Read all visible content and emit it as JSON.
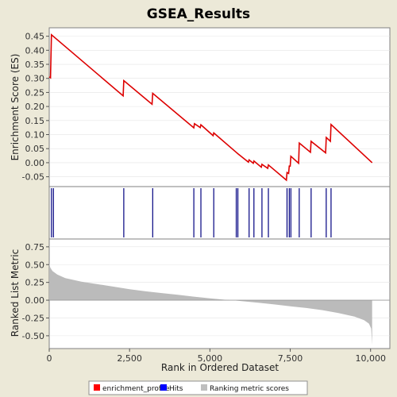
{
  "chart_data": {
    "title": "GSEA_Results",
    "colors": {
      "background": "#ece9d8",
      "panel": "#ffffff",
      "enrichment_line": "#dd0000",
      "hits": "#000080",
      "ranking": "#bbbbbb",
      "legend_enrichment": "#ff0000",
      "legend_hits": "#0000ff",
      "legend_ranking": "#bfbfbf"
    },
    "x_axis": {
      "label": "Rank in Ordered Dataset",
      "range": [
        0,
        10600
      ],
      "ticks": [
        0,
        2500,
        5000,
        7500,
        10000
      ],
      "tick_labels": [
        "0",
        "2,500",
        "5,000",
        "7,500",
        "10,000"
      ]
    },
    "enrichment_panel": {
      "type": "line",
      "ylabel": "Enrichment Score (ES)",
      "ylim": [
        -0.085,
        0.48
      ],
      "yticks": [
        -0.05,
        0.0,
        0.05,
        0.1,
        0.15,
        0.2,
        0.25,
        0.3,
        0.35,
        0.4,
        0.45
      ],
      "ytick_labels": [
        "-0.05",
        "0.00",
        "0.05",
        "0.10",
        "0.15",
        "0.20",
        "0.25",
        "0.30",
        "0.35",
        "0.40",
        "0.45"
      ],
      "points": [
        [
          0,
          0.305
        ],
        [
          40,
          0.302
        ],
        [
          70,
          0.455
        ],
        [
          2300,
          0.238
        ],
        [
          2320,
          0.292
        ],
        [
          3200,
          0.208
        ],
        [
          3220,
          0.247
        ],
        [
          4500,
          0.124
        ],
        [
          4520,
          0.139
        ],
        [
          4700,
          0.125
        ],
        [
          4720,
          0.135
        ],
        [
          5100,
          0.096
        ],
        [
          5120,
          0.106
        ],
        [
          5820,
          0.037
        ],
        [
          5870,
          0.032
        ],
        [
          6200,
          0.002
        ],
        [
          6220,
          0.01
        ],
        [
          6350,
          -0.002
        ],
        [
          6370,
          0.006
        ],
        [
          6600,
          -0.016
        ],
        [
          6620,
          -0.006
        ],
        [
          6800,
          -0.02
        ],
        [
          6820,
          -0.008
        ],
        [
          7380,
          -0.062
        ],
        [
          7400,
          -0.035
        ],
        [
          7450,
          -0.038
        ],
        [
          7470,
          -0.012
        ],
        [
          7500,
          -0.012
        ],
        [
          7520,
          0.023
        ],
        [
          7760,
          -0.002
        ],
        [
          7780,
          0.07
        ],
        [
          8130,
          0.037
        ],
        [
          8150,
          0.076
        ],
        [
          8600,
          0.035
        ],
        [
          8620,
          0.09
        ],
        [
          8750,
          0.076
        ],
        [
          8770,
          0.136
        ],
        [
          10050,
          0.0
        ]
      ]
    },
    "hits_panel": {
      "type": "hits",
      "ranks": [
        70,
        130,
        2320,
        3220,
        4500,
        4720,
        5120,
        5820,
        5870,
        6220,
        6370,
        6620,
        6820,
        7400,
        7470,
        7520,
        7780,
        8150,
        8620,
        8770
      ]
    },
    "ranking_panel": {
      "type": "area",
      "ylabel": "Ranked List Metric",
      "ylim": [
        -0.68,
        0.86
      ],
      "yticks": [
        -0.5,
        -0.25,
        0.0,
        0.25,
        0.5,
        0.75
      ],
      "ytick_labels": [
        "-0.50",
        "-0.25",
        "0.00",
        "0.25",
        "0.50",
        "0.75"
      ],
      "points": [
        [
          0,
          0.52
        ],
        [
          30,
          0.46
        ],
        [
          100,
          0.41
        ],
        [
          250,
          0.36
        ],
        [
          500,
          0.31
        ],
        [
          1000,
          0.26
        ],
        [
          1500,
          0.225
        ],
        [
          2000,
          0.19
        ],
        [
          2500,
          0.155
        ],
        [
          3000,
          0.125
        ],
        [
          3500,
          0.1
        ],
        [
          4000,
          0.075
        ],
        [
          4500,
          0.05
        ],
        [
          5000,
          0.025
        ],
        [
          5500,
          0.005
        ],
        [
          5800,
          -0.005
        ],
        [
          6500,
          -0.035
        ],
        [
          7000,
          -0.06
        ],
        [
          7500,
          -0.085
        ],
        [
          8000,
          -0.11
        ],
        [
          8500,
          -0.14
        ],
        [
          9000,
          -0.18
        ],
        [
          9500,
          -0.23
        ],
        [
          9800,
          -0.28
        ],
        [
          9950,
          -0.33
        ],
        [
          10020,
          -0.4
        ],
        [
          10050,
          -0.63
        ]
      ]
    },
    "legend": [
      {
        "label": "enrichment_profile",
        "color": "#ff0000"
      },
      {
        "label": "Hits",
        "color": "#0000ff"
      },
      {
        "label": "Ranking metric scores",
        "color": "#bfbfbf"
      }
    ]
  }
}
